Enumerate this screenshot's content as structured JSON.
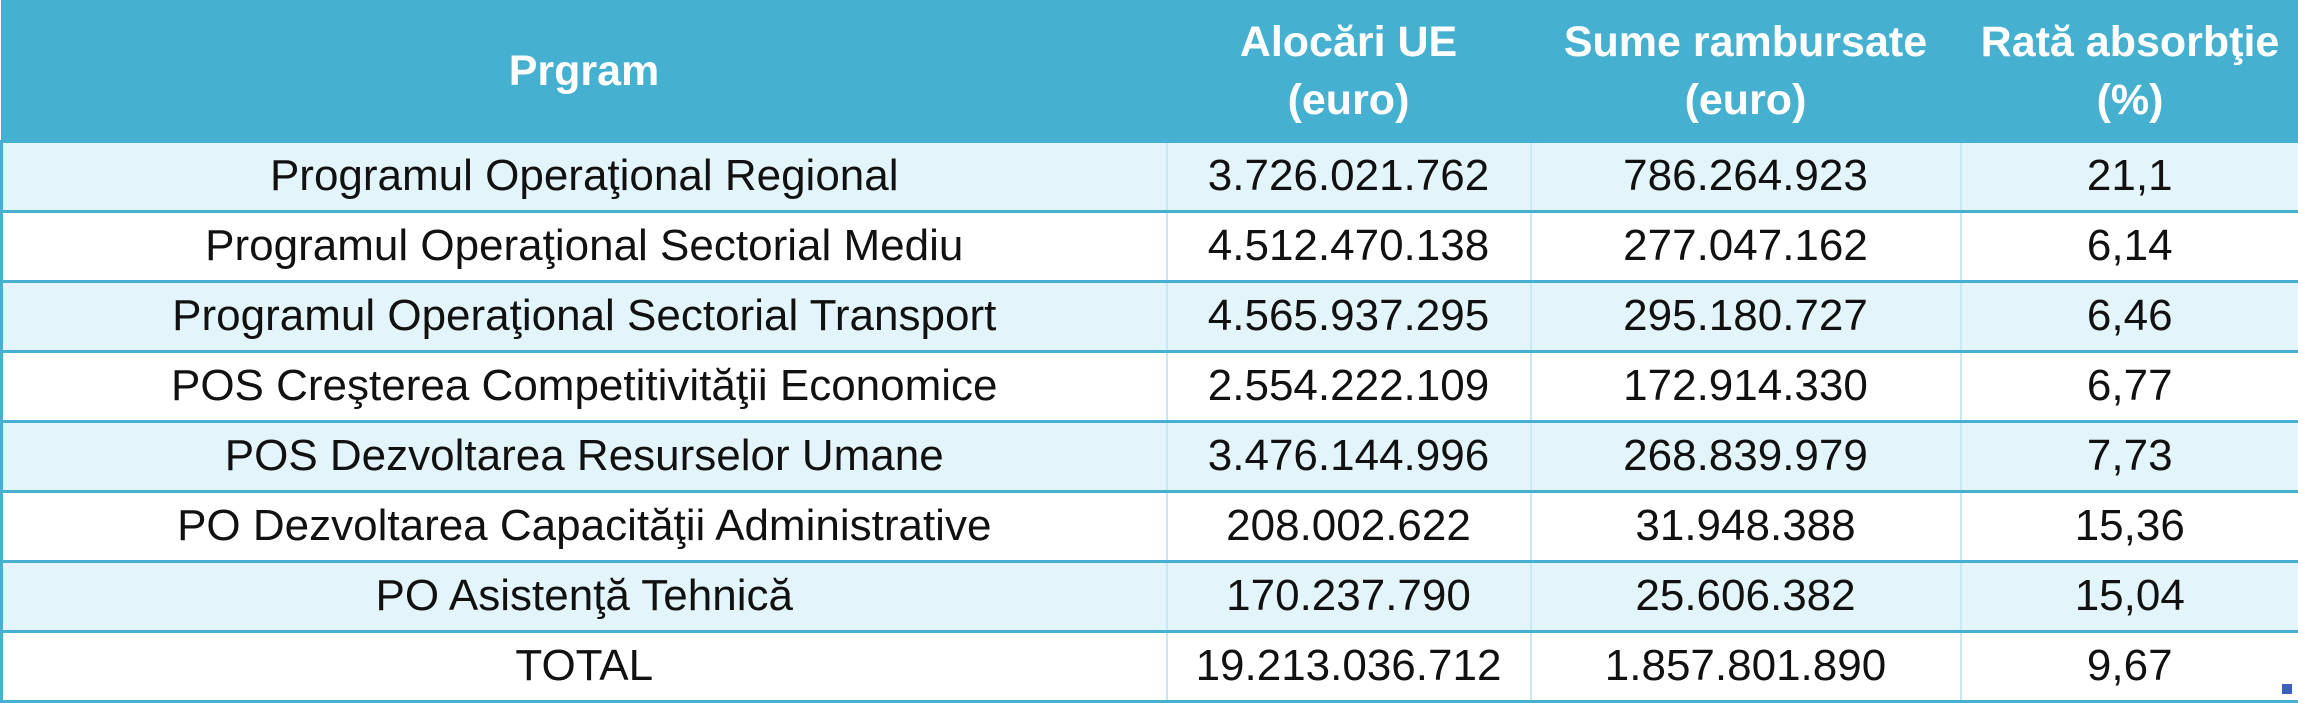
{
  "table": {
    "headers": {
      "program": "Prgram",
      "alocari_line1": "Alocări UE",
      "alocari_line2": "(euro)",
      "sume_line1": "Sume rambursate",
      "sume_line2": "(euro)",
      "rata_line1": "Rată absorbţie",
      "rata_line2": "(%)"
    },
    "rows": [
      {
        "program": "Programul Operaţional Regional",
        "alocari": "3.726.021.762",
        "sume": "786.264.923",
        "rata": "21,1"
      },
      {
        "program": "Programul Operaţional Sectorial Mediu",
        "alocari": "4.512.470.138",
        "sume": "277.047.162",
        "rata": "6,14"
      },
      {
        "program": "Programul Operaţional Sectorial Transport",
        "alocari": "4.565.937.295",
        "sume": "295.180.727",
        "rata": "6,46"
      },
      {
        "program": "POS Creşterea Competitivităţii Economice",
        "alocari": "2.554.222.109",
        "sume": "172.914.330",
        "rata": "6,77"
      },
      {
        "program": "POS Dezvoltarea Resurselor Umane",
        "alocari": "3.476.144.996",
        "sume": "268.839.979",
        "rata": "7,73"
      },
      {
        "program": "PO Dezvoltarea Capacităţii Administrative",
        "alocari": "208.002.622",
        "sume": "31.948.388",
        "rata": "15,36"
      },
      {
        "program": "PO Asistenţă Tehnică",
        "alocari": "170.237.790",
        "sume": "25.606.382",
        "rata": "15,04"
      },
      {
        "program": "TOTAL",
        "alocari": "19.213.036.712",
        "sume": "1.857.801.890",
        "rata": "9,67"
      }
    ]
  },
  "colors": {
    "header_bg": "#45b0d0",
    "header_text": "#ffffff",
    "row_shaded": "#e3f5fb",
    "row_plain": "#ffffff",
    "border": "#45b0d0"
  }
}
